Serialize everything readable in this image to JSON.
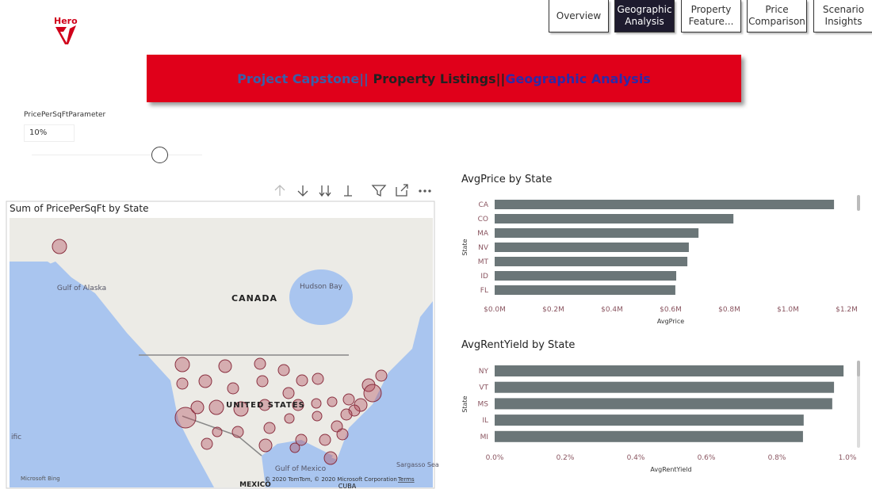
{
  "header": {
    "logo": "Hero",
    "nav": [
      "Overview",
      "Geographic Analysis",
      "Property Feature...",
      "Price Comparison",
      "Scenario Insights"
    ],
    "banner": [
      "Project Capstone||",
      " Property Listings||",
      "Geographic Analysis"
    ]
  },
  "slicer": {
    "label": "PricePerSqFtParameter",
    "value": "10%"
  },
  "map": {
    "title": "Sum of PricePerSqFt by State",
    "labels": [
      "Gulf of Alaska",
      "CANADA",
      "Hudson Bay",
      "UNITED STATES",
      "Gulf of Mexico",
      "MEXICO",
      "CUBA",
      "Sargasso Sea",
      "ific"
    ],
    "attribution": "© 2020 TomTom, © 2020 Microsoft Corporation",
    "terms": "Terms",
    "brand": "Microsoft Bing"
  },
  "chart_data": [
    {
      "type": "barh",
      "title": "AvgPrice by State",
      "x_label": "AvgPrice",
      "y_label": "State",
      "categories": [
        "CA",
        "CO",
        "MA",
        "NV",
        "MT",
        "ID",
        "FL"
      ],
      "values": [
        1157000,
        814000,
        695000,
        662000,
        657000,
        619000,
        616000
      ],
      "color": "#6b7678",
      "grid": false,
      "xlim": [
        0,
        1200000
      ],
      "xticks": [
        {
          "value": 0,
          "label": "$0.0M"
        },
        {
          "value": 200000,
          "label": "$0.2M"
        },
        {
          "value": 400000,
          "label": "$0.4M"
        },
        {
          "value": 600000,
          "label": "$0.6M"
        },
        {
          "value": 800000,
          "label": "$0.8M"
        },
        {
          "value": 1000000,
          "label": "$1.0M"
        },
        {
          "value": 1200000,
          "label": "$1.2M"
        }
      ]
    },
    {
      "type": "barh",
      "title": "AvgRentYield by State",
      "x_label": "AvgRentYield",
      "y_label": "State",
      "categories": [
        "NY",
        "VT",
        "MS",
        "IL",
        "MI"
      ],
      "values": [
        0.989,
        0.962,
        0.957,
        0.876,
        0.874
      ],
      "color": "#6b7678",
      "grid": false,
      "xlim": [
        0,
        1
      ],
      "xticks": [
        {
          "value": 0,
          "label": "0.0%"
        },
        {
          "value": 0.2,
          "label": "0.2%"
        },
        {
          "value": 0.4,
          "label": "0.4%"
        },
        {
          "value": 0.6,
          "label": "0.6%"
        },
        {
          "value": 0.8,
          "label": "0.8%"
        },
        {
          "value": 1,
          "label": "1.0%"
        }
      ]
    }
  ]
}
